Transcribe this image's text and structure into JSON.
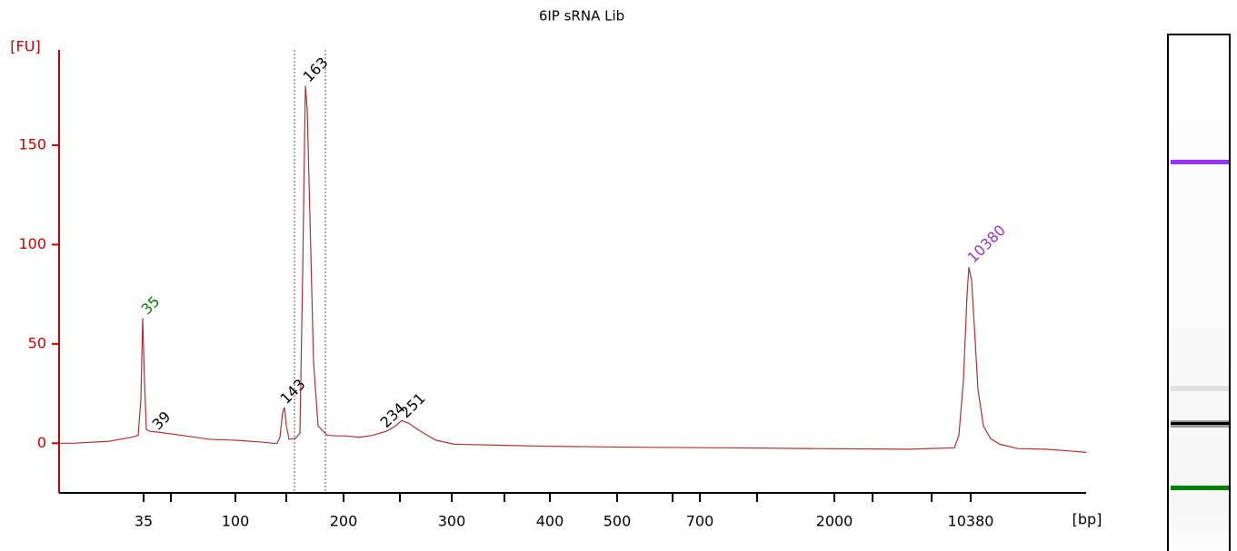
{
  "chart_data": {
    "type": "line",
    "title": "6IP sRNA Lib",
    "y_label": "[FU]",
    "x_label": "[bp]",
    "xlim": [
      0,
      113
    ],
    "ylim": [
      -25,
      198
    ],
    "yticks": [
      0,
      50,
      100,
      150
    ],
    "xticks": [
      {
        "value": 9.3,
        "label": "35"
      },
      {
        "value": 19.4,
        "label": "100"
      },
      {
        "value": 31.3,
        "label": "200"
      },
      {
        "value": 43.2,
        "label": "300"
      },
      {
        "value": 54.0,
        "label": "400"
      },
      {
        "value": 61.4,
        "label": "500"
      },
      {
        "value": 70.5,
        "label": "700"
      },
      {
        "value": 85.3,
        "label": "2000"
      },
      {
        "value": 100.3,
        "label": "10380"
      }
    ],
    "xticks_minor": [
      12.3,
      25.0,
      37.5,
      49.0,
      67.5,
      76.8,
      89.5,
      96.0
    ],
    "region": [
      25.9,
      29.3
    ],
    "series": [
      {
        "color": "#b03030",
        "x": [
          0,
          1.5,
          5.5,
          8,
          8.7,
          9,
          9.2,
          9.4,
          9.6,
          10,
          11,
          13.5,
          16.5,
          19.5,
          22.5,
          23.5,
          24,
          24.3,
          24.6,
          24.8,
          25,
          25.3,
          26,
          26.5,
          26.8,
          27.1,
          27.3,
          27.6,
          28,
          28.5,
          29.5,
          30.5,
          31.5,
          33,
          34.5,
          36,
          37,
          37.7,
          38.5,
          39.5,
          40.5,
          41.5,
          43.5,
          48.5,
          53.5,
          63.5,
          73.5,
          83.5,
          93.5,
          98.5,
          99,
          99.5,
          99.9,
          100.1,
          100.4,
          100.7,
          101.1,
          101.7,
          102.5,
          103.5,
          105.5,
          108.5,
          111.5,
          113
        ],
        "values": [
          0,
          0,
          1,
          3,
          4,
          22,
          63,
          31,
          7,
          6,
          5.5,
          4,
          2,
          1.5,
          0.5,
          0,
          0,
          3,
          15.5,
          18,
          9,
          2,
          2.5,
          5,
          86,
          180,
          168,
          114,
          40.6,
          8.7,
          4,
          3.7,
          3.7,
          3,
          4,
          6,
          8.7,
          11.4,
          10,
          6.8,
          4,
          1.5,
          -0.5,
          -1,
          -1.5,
          -2,
          -2.3,
          -2.7,
          -3,
          -2.3,
          4,
          31.5,
          75,
          88.6,
          82,
          59,
          27,
          8.7,
          2.3,
          -0.5,
          -2.7,
          -3,
          -4,
          -4.6
        ]
      }
    ],
    "annotations": [
      {
        "text": "35",
        "x": 9.2,
        "y": 64,
        "color": "#008000"
      },
      {
        "text": "39",
        "x": 10.4,
        "y": 6,
        "color": "#000000"
      },
      {
        "text": "143",
        "x": 24.5,
        "y": 19,
        "color": "#000000"
      },
      {
        "text": "163",
        "x": 27.0,
        "y": 181,
        "color": "#000000"
      },
      {
        "text": "234",
        "x": 35.5,
        "y": 7,
        "color": "#000000"
      },
      {
        "text": "251",
        "x": 37.7,
        "y": 12,
        "color": "#000000"
      },
      {
        "text": "10380",
        "x": 100.1,
        "y": 90,
        "color": "#9933cc"
      }
    ]
  }
}
